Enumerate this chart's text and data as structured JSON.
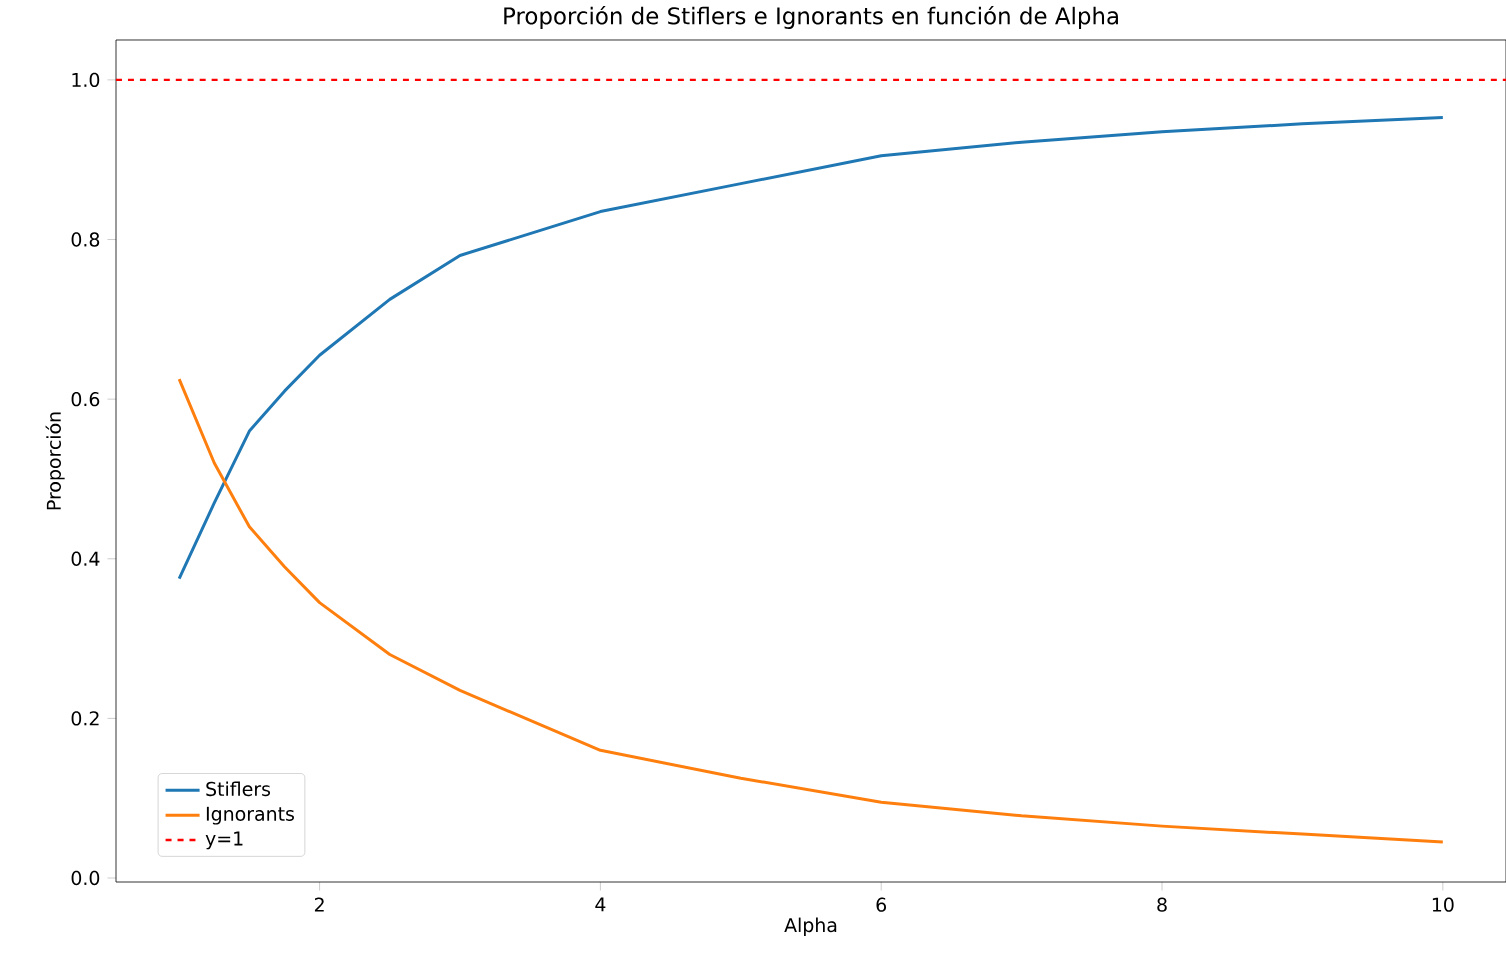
{
  "chart_data": {
    "type": "line",
    "title": "Proporción de Stiflers e Ignorants en función de Alpha",
    "xlabel": "Alpha",
    "ylabel": "Proporción",
    "x": [
      1,
      1.25,
      1.5,
      1.75,
      2,
      2.5,
      3,
      4,
      5,
      6,
      7,
      8,
      9,
      10
    ],
    "series": [
      {
        "name": "Stiflers",
        "color": "#1f77b4",
        "values": [
          0.375,
          0.47,
          0.56,
          0.61,
          0.655,
          0.725,
          0.78,
          0.835,
          0.87,
          0.905,
          0.922,
          0.935,
          0.945,
          0.953
        ]
      },
      {
        "name": "Ignorants",
        "color": "#ff7f0e",
        "values": [
          0.625,
          0.52,
          0.44,
          0.39,
          0.345,
          0.28,
          0.235,
          0.16,
          0.125,
          0.095,
          0.078,
          0.065,
          0.055,
          0.045
        ]
      }
    ],
    "ref_lines": [
      {
        "axis": "y",
        "value": 1,
        "label": "y=1",
        "color": "#ff0000",
        "line_style": "dashed"
      }
    ],
    "xlim": [
      0.55,
      10.45
    ],
    "ylim": [
      -0.005,
      1.05
    ],
    "xticks": [
      2,
      4,
      6,
      8,
      10
    ],
    "yticks": [
      {
        "value": 0,
        "label": "0.0"
      },
      0.2,
      0.4,
      0.6,
      0.8,
      {
        "value": 1,
        "label": "1.0"
      }
    ],
    "legend": "bottom left",
    "grid": false,
    "marker": "none",
    "line_style": "solid"
  }
}
